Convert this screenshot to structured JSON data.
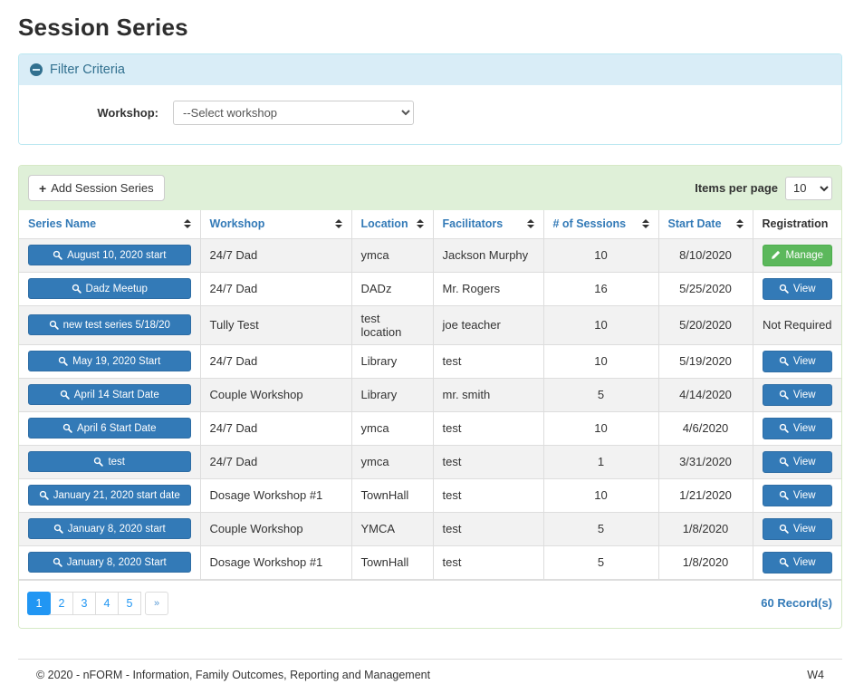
{
  "page": {
    "title": "Session Series",
    "footer": {
      "copyright": "© 2020 - nFORM - Information, Family Outcomes, Reporting and Management",
      "version": "W4"
    }
  },
  "filter": {
    "title": "Filter Criteria",
    "collapse_icon": "minus-circle-icon",
    "workshop_label": "Workshop:",
    "workshop_selected": "--Select workshop"
  },
  "toolbar": {
    "add_button_label": "Add Session Series",
    "add_button_icon": "plus-icon",
    "items_per_page_label": "Items per page",
    "items_per_page_value": "10"
  },
  "table": {
    "columns": [
      {
        "key": "series-name",
        "label": "Series Name",
        "sortable": true
      },
      {
        "key": "workshop",
        "label": "Workshop",
        "sortable": true
      },
      {
        "key": "location",
        "label": "Location",
        "sortable": true
      },
      {
        "key": "facilitators",
        "label": "Facilitators",
        "sortable": true
      },
      {
        "key": "sessions",
        "label": "# of Sessions",
        "sortable": true
      },
      {
        "key": "start-date",
        "label": "Start Date",
        "sortable": true
      },
      {
        "key": "registration",
        "label": "Registration",
        "sortable": false
      }
    ],
    "rows": [
      {
        "series_name": "August 10, 2020 start",
        "workshop": "24/7 Dad",
        "location": "ymca",
        "facilitators": "Jackson Murphy",
        "sessions": "10",
        "start_date": "8/10/2020",
        "registration": {
          "type": "manage",
          "label": "Manage"
        }
      },
      {
        "series_name": "Dadz Meetup",
        "workshop": "24/7 Dad",
        "location": "DADz",
        "facilitators": "Mr. Rogers",
        "sessions": "16",
        "start_date": "5/25/2020",
        "registration": {
          "type": "view",
          "label": "View"
        }
      },
      {
        "series_name": "new test series 5/18/20",
        "workshop": "Tully Test",
        "location": "test location",
        "facilitators": "joe teacher",
        "sessions": "10",
        "start_date": "5/20/2020",
        "registration": {
          "type": "text",
          "label": "Not Required"
        }
      },
      {
        "series_name": "May 19, 2020 Start",
        "workshop": "24/7 Dad",
        "location": "Library",
        "facilitators": "test",
        "sessions": "10",
        "start_date": "5/19/2020",
        "registration": {
          "type": "view",
          "label": "View"
        }
      },
      {
        "series_name": "April 14 Start Date",
        "workshop": "Couple Workshop",
        "location": "Library",
        "facilitators": "mr. smith",
        "sessions": "5",
        "start_date": "4/14/2020",
        "registration": {
          "type": "view",
          "label": "View"
        }
      },
      {
        "series_name": "April 6 Start Date",
        "workshop": "24/7 Dad",
        "location": "ymca",
        "facilitators": "test",
        "sessions": "10",
        "start_date": "4/6/2020",
        "registration": {
          "type": "view",
          "label": "View"
        }
      },
      {
        "series_name": "test",
        "workshop": "24/7 Dad",
        "location": "ymca",
        "facilitators": "test",
        "sessions": "1",
        "start_date": "3/31/2020",
        "registration": {
          "type": "view",
          "label": "View"
        }
      },
      {
        "series_name": "January 21, 2020 start date",
        "workshop": "Dosage Workshop #1",
        "location": "TownHall",
        "facilitators": "test",
        "sessions": "10",
        "start_date": "1/21/2020",
        "registration": {
          "type": "view",
          "label": "View"
        }
      },
      {
        "series_name": "January 8, 2020 start",
        "workshop": "Couple Workshop",
        "location": "YMCA",
        "facilitators": "test",
        "sessions": "5",
        "start_date": "1/8/2020",
        "registration": {
          "type": "view",
          "label": "View"
        }
      },
      {
        "series_name": "January 8, 2020 Start",
        "workshop": "Dosage Workshop #1",
        "location": "TownHall",
        "facilitators": "test",
        "sessions": "5",
        "start_date": "1/8/2020",
        "registration": {
          "type": "view",
          "label": "View"
        }
      }
    ]
  },
  "pagination": {
    "pages": [
      "1",
      "2",
      "3",
      "4",
      "5"
    ],
    "active": "1",
    "next_label": "»",
    "records_label": "60 Record(s)"
  },
  "colors": {
    "accent_blue": "#337ab7",
    "success_green": "#5cb85c",
    "filter_header_bg": "#d9edf7",
    "filter_header_text": "#31708f",
    "panel_green_bg": "#dff0d8",
    "panel_green_border": "#d6e9c6",
    "active_page_blue": "#2196f3",
    "stripe_gray": "#f2f2f2"
  }
}
